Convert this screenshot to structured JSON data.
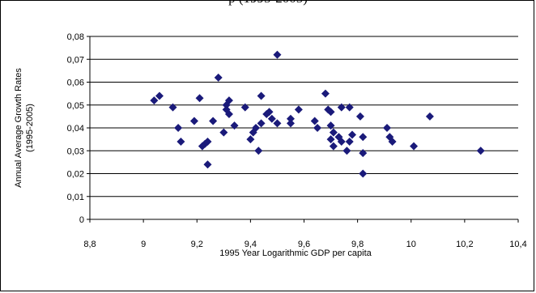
{
  "header": {
    "clipped_title": "p (1995-2005)"
  },
  "chart_data": {
    "type": "scatter",
    "title": "",
    "xlabel": "1995 Year Logarithmic GDP per capita",
    "ylabel_lines": [
      "Annual Average Growth Rates",
      "(1995-2005)"
    ],
    "xlim": [
      8.8,
      10.4
    ],
    "ylim": [
      0,
      0.08
    ],
    "x_ticks": [
      8.8,
      9,
      9.2,
      9.4,
      9.6,
      9.8,
      10,
      10.2,
      10.4
    ],
    "y_ticks": [
      0,
      0.01,
      0.02,
      0.03,
      0.04,
      0.05,
      0.06,
      0.07,
      0.08
    ],
    "x_tick_labels": [
      "8,8",
      "9",
      "9,2",
      "9,4",
      "9,6",
      "9,8",
      "10",
      "10,2",
      "10,4"
    ],
    "y_tick_labels": [
      "0",
      "0,01",
      "0,02",
      "0,03",
      "0,04",
      "0,05",
      "0,06",
      "0,07",
      "0,08"
    ],
    "grid": "horizontal",
    "marker_color": "#1a1a7a",
    "points": [
      [
        9.04,
        0.052
      ],
      [
        9.06,
        0.054
      ],
      [
        9.11,
        0.049
      ],
      [
        9.13,
        0.04
      ],
      [
        9.14,
        0.034
      ],
      [
        9.19,
        0.043
      ],
      [
        9.21,
        0.053
      ],
      [
        9.22,
        0.032
      ],
      [
        9.23,
        0.033
      ],
      [
        9.24,
        0.034
      ],
      [
        9.24,
        0.024
      ],
      [
        9.26,
        0.043
      ],
      [
        9.28,
        0.062
      ],
      [
        9.3,
        0.038
      ],
      [
        9.31,
        0.05
      ],
      [
        9.31,
        0.048
      ],
      [
        9.32,
        0.046
      ],
      [
        9.32,
        0.052
      ],
      [
        9.34,
        0.041
      ],
      [
        9.38,
        0.049
      ],
      [
        9.4,
        0.035
      ],
      [
        9.41,
        0.038
      ],
      [
        9.42,
        0.04
      ],
      [
        9.43,
        0.03
      ],
      [
        9.44,
        0.054
      ],
      [
        9.44,
        0.042
      ],
      [
        9.46,
        0.046
      ],
      [
        9.47,
        0.047
      ],
      [
        9.48,
        0.044
      ],
      [
        9.5,
        0.072
      ],
      [
        9.5,
        0.042
      ],
      [
        9.55,
        0.044
      ],
      [
        9.55,
        0.042
      ],
      [
        9.58,
        0.048
      ],
      [
        9.64,
        0.043
      ],
      [
        9.65,
        0.04
      ],
      [
        9.68,
        0.055
      ],
      [
        9.69,
        0.048
      ],
      [
        9.7,
        0.047
      ],
      [
        9.7,
        0.041
      ],
      [
        9.7,
        0.035
      ],
      [
        9.71,
        0.038
      ],
      [
        9.71,
        0.032
      ],
      [
        9.73,
        0.036
      ],
      [
        9.74,
        0.049
      ],
      [
        9.74,
        0.034
      ],
      [
        9.76,
        0.03
      ],
      [
        9.77,
        0.049
      ],
      [
        9.77,
        0.034
      ],
      [
        9.78,
        0.037
      ],
      [
        9.81,
        0.045
      ],
      [
        9.82,
        0.036
      ],
      [
        9.82,
        0.029
      ],
      [
        9.82,
        0.02
      ],
      [
        9.91,
        0.04
      ],
      [
        9.92,
        0.036
      ],
      [
        9.93,
        0.034
      ],
      [
        10.01,
        0.032
      ],
      [
        10.07,
        0.045
      ],
      [
        10.26,
        0.03
      ]
    ]
  }
}
